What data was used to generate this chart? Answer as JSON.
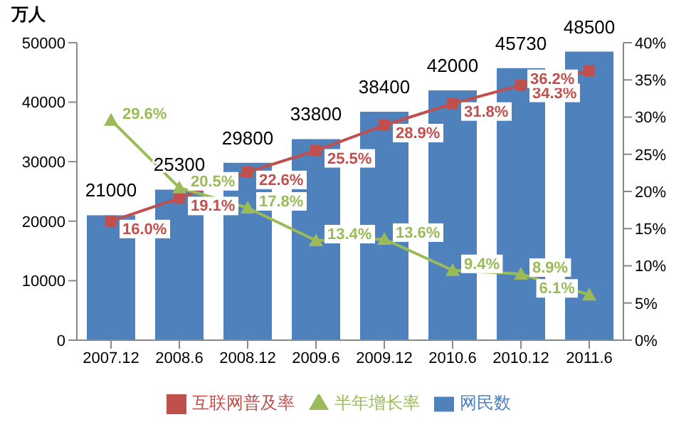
{
  "chart_data": {
    "type": "bar",
    "ylabel": "万人",
    "categories": [
      "2007.12",
      "2008.6",
      "2008.12",
      "2009.6",
      "2009.12",
      "2010.6",
      "2010.12",
      "2011.6"
    ],
    "series": [
      {
        "name": "网民数",
        "color": "#4f81bd",
        "values": [
          21000,
          25300,
          29800,
          33800,
          38400,
          42000,
          45730,
          48500
        ],
        "value_labels": [
          "21000",
          "25300",
          "29800",
          "33800",
          "38400",
          "42000",
          "45730",
          "48500"
        ]
      },
      {
        "name": "互联网普及率",
        "type": "line",
        "axis": "y2",
        "marker": "square",
        "color": "#c0504d",
        "values": [
          16.0,
          19.1,
          22.6,
          25.5,
          28.9,
          31.8,
          34.3,
          36.2
        ],
        "value_labels": [
          "16.0%",
          "19.1%",
          "22.6%",
          "25.5%",
          "28.9%",
          "31.8%",
          "34.3%",
          "36.2%"
        ]
      },
      {
        "name": "半年增长率",
        "type": "line",
        "axis": "y2",
        "marker": "triangle",
        "color": "#9bbb59",
        "values": [
          29.6,
          20.5,
          17.8,
          13.4,
          13.6,
          9.4,
          8.9,
          6.1
        ],
        "value_labels": [
          "29.6%",
          "20.5%",
          "17.8%",
          "13.4%",
          "13.6%",
          "9.4%",
          "8.9%",
          "6.1%"
        ]
      }
    ],
    "ylim": [
      0,
      50000
    ],
    "yticks": [
      0,
      10000,
      20000,
      30000,
      40000,
      50000
    ],
    "y2lim": [
      0,
      40
    ],
    "y2ticks": [
      {
        "value": 0,
        "label": "0%"
      },
      {
        "value": 5,
        "label": "5%"
      },
      {
        "value": 10,
        "label": "10%"
      },
      {
        "value": 15,
        "label": "15%"
      },
      {
        "value": 20,
        "label": "20%"
      },
      {
        "value": 25,
        "label": "25%"
      },
      {
        "value": 30,
        "label": "30%"
      },
      {
        "value": 35,
        "label": "35%"
      },
      {
        "value": 40,
        "label": "40%"
      }
    ],
    "legend": "bottom",
    "grid": false
  }
}
